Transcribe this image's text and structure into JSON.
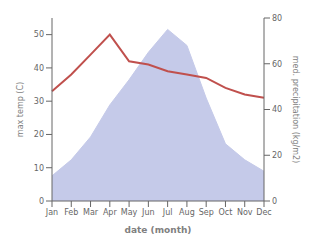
{
  "chart_data": {
    "type": "line",
    "categories": [
      "Jan",
      "Feb",
      "Mar",
      "Apr",
      "May",
      "Jun",
      "Jul",
      "Aug",
      "Sep",
      "Oct",
      "Nov",
      "Dec"
    ],
    "xlabel": "date (month)",
    "ylabel": "max temp (C)",
    "y2label": "med. precipitation (kg/m2)",
    "ylim": [
      0,
      55
    ],
    "yticks": [
      0,
      10,
      20,
      30,
      40,
      50
    ],
    "y2lim": [
      0,
      80
    ],
    "y2ticks": [
      0,
      20,
      40,
      60,
      80
    ],
    "series": [
      {
        "type": "area",
        "axis": "y2",
        "color": "#c5cae9",
        "values": [
          11,
          18,
          28,
          42,
          53,
          65,
          75,
          68,
          45,
          25,
          18,
          13
        ]
      },
      {
        "type": "line",
        "color": "#c0504d",
        "values": [
          33,
          38,
          44,
          50,
          42,
          41,
          39,
          38,
          37,
          34,
          32,
          31
        ]
      }
    ]
  }
}
